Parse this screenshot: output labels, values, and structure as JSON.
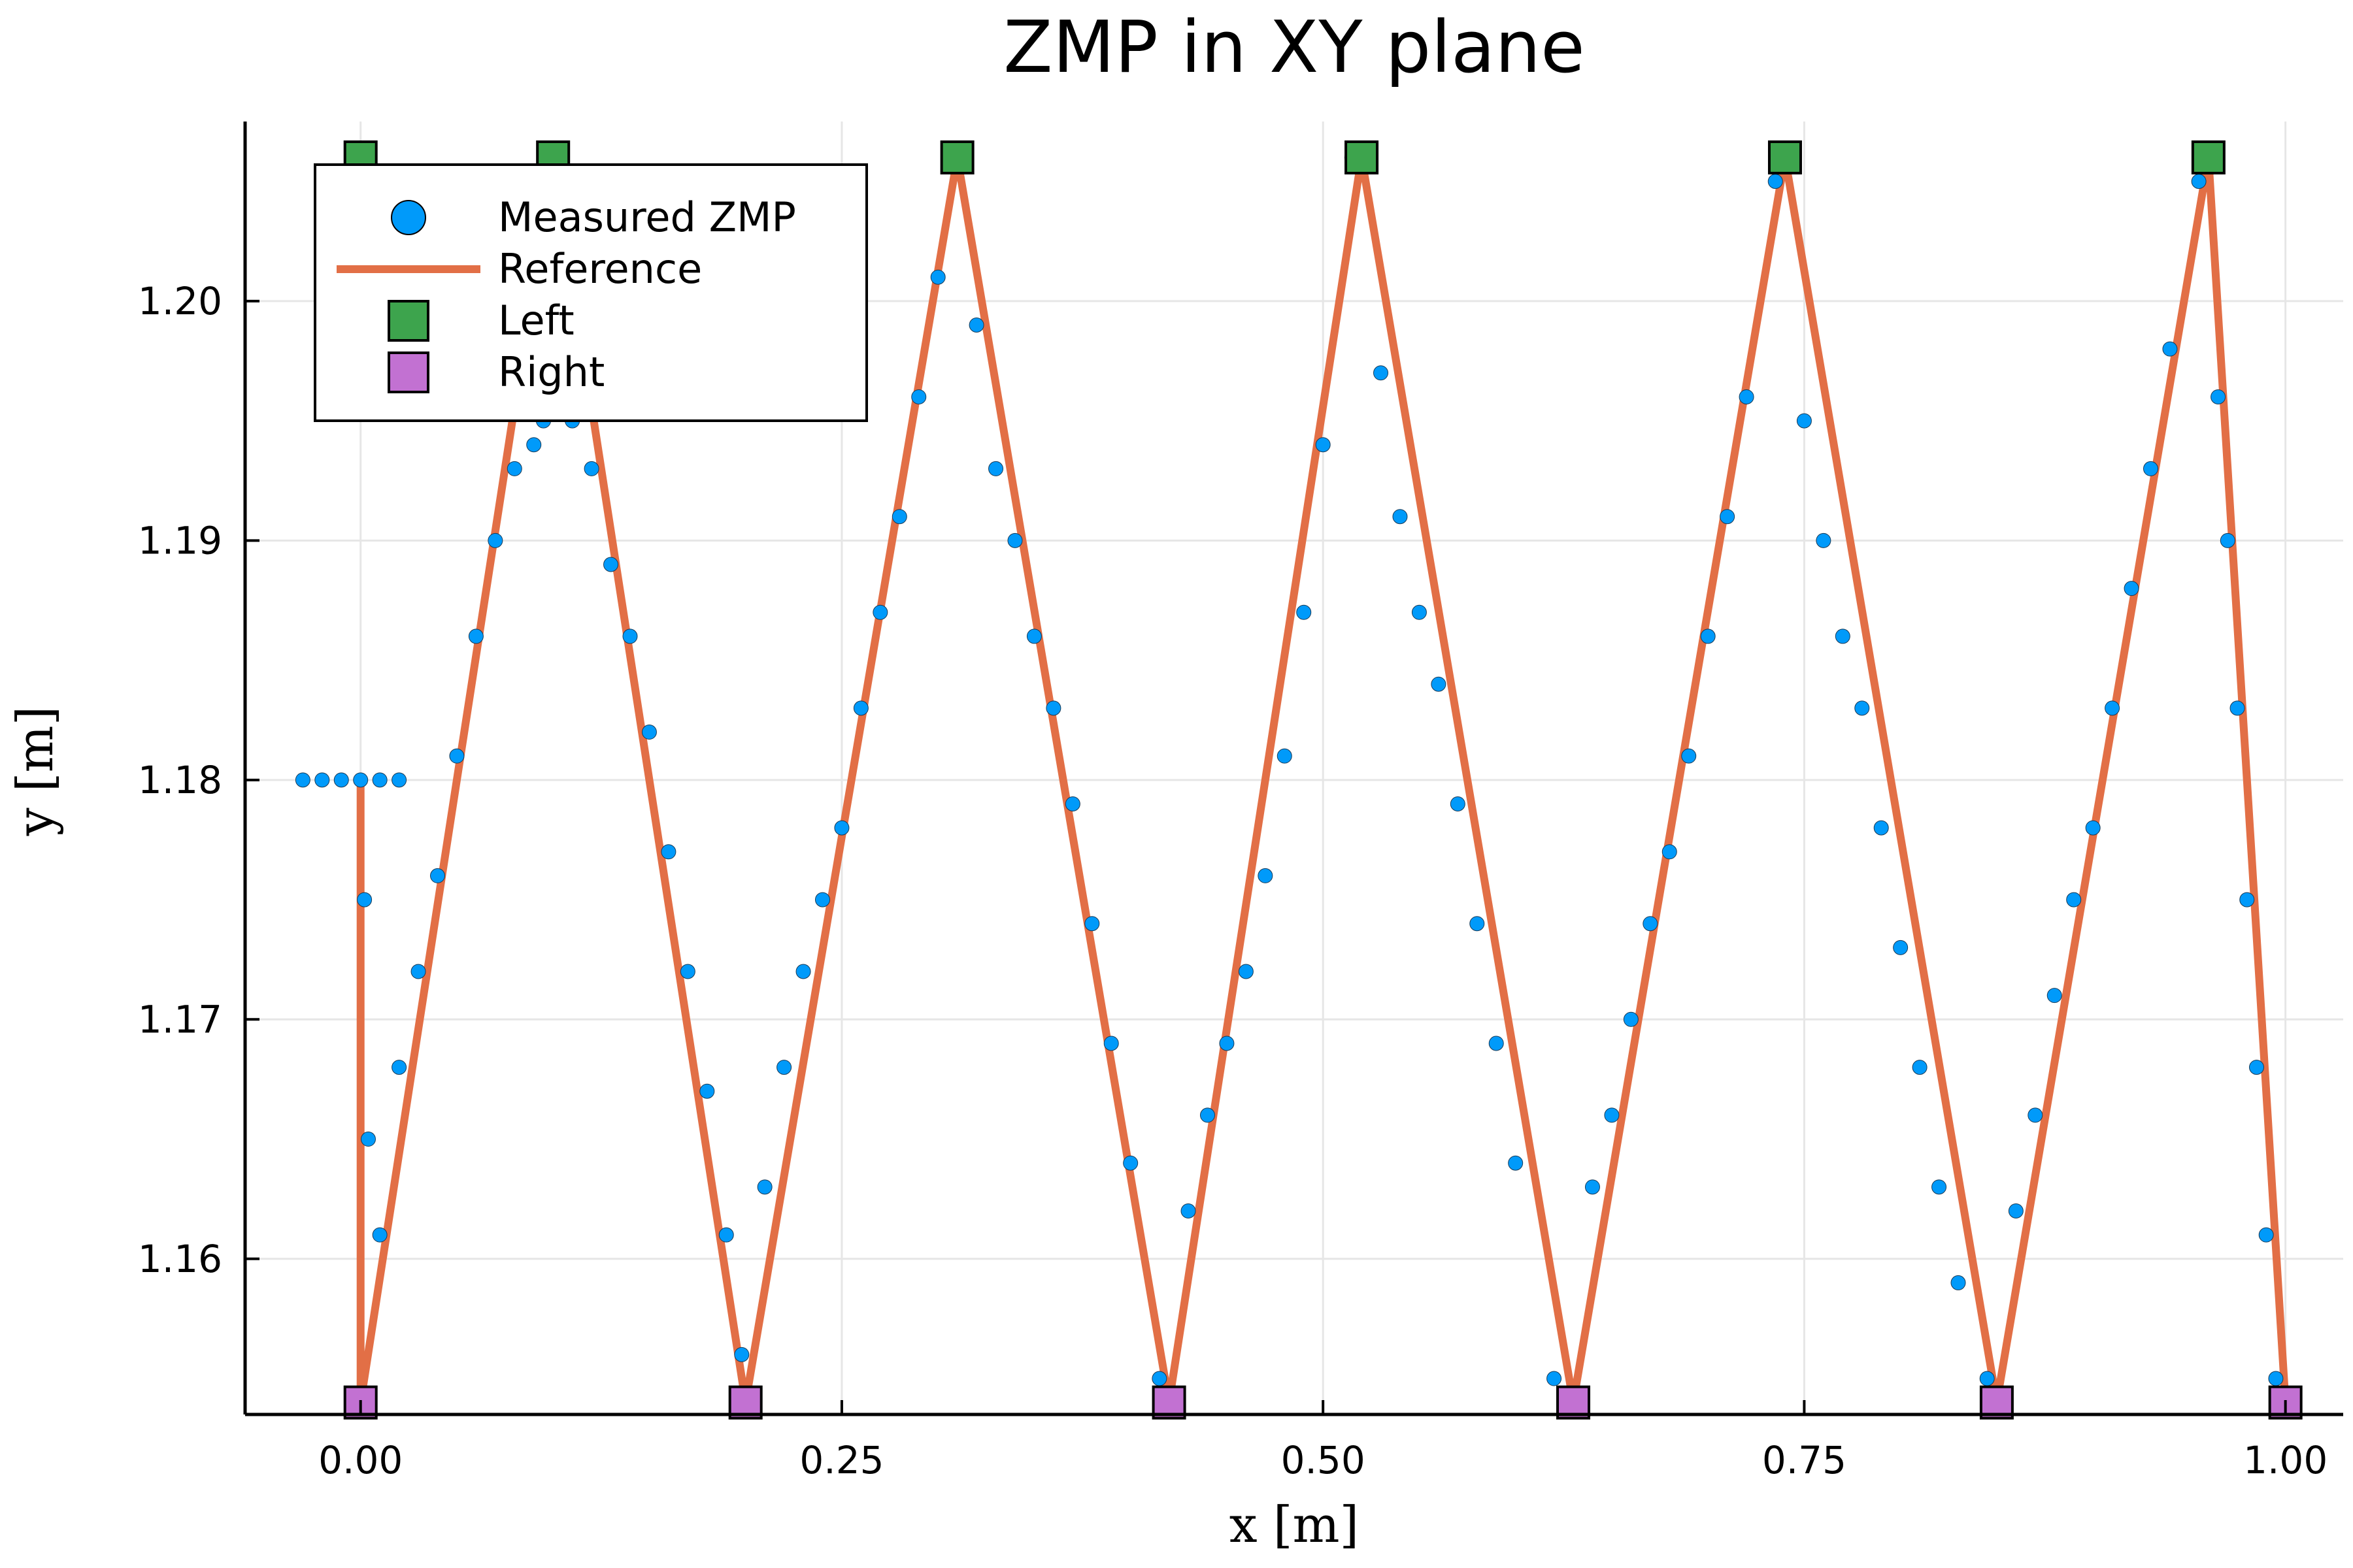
{
  "chart_data": {
    "type": "scatter",
    "title": "ZMP in XY plane",
    "xlabel": "x [m]",
    "ylabel": "y [m]",
    "xlim": [
      -0.06,
      1.03
    ],
    "ylim": [
      1.1535,
      1.2075
    ],
    "xticks": [
      0.0,
      0.25,
      0.5,
      0.75,
      1.0
    ],
    "xtick_labels": [
      "0.00",
      "0.25",
      "0.50",
      "0.75",
      "1.00"
    ],
    "yticks": [
      1.16,
      1.17,
      1.18,
      1.19,
      1.2
    ],
    "ytick_labels": [
      "1.16",
      "1.17",
      "1.18",
      "1.19",
      "1.20"
    ],
    "grid": true,
    "legend_position": "top-left",
    "series": [
      {
        "name": "Measured ZMP",
        "kind": "scatter",
        "color": "#009AFA",
        "x": [
          -0.03,
          -0.02,
          -0.01,
          0.0,
          0.01,
          0.02,
          0.002,
          0.004,
          0.01,
          0.02,
          0.03,
          0.04,
          0.05,
          0.06,
          0.07,
          0.08,
          0.09,
          0.095,
          0.11,
          0.12,
          0.13,
          0.14,
          0.15,
          0.16,
          0.17,
          0.18,
          0.19,
          0.198,
          0.21,
          0.22,
          0.23,
          0.24,
          0.25,
          0.26,
          0.27,
          0.28,
          0.29,
          0.3,
          0.31,
          0.32,
          0.33,
          0.34,
          0.35,
          0.36,
          0.37,
          0.38,
          0.39,
          0.4,
          0.415,
          0.43,
          0.44,
          0.45,
          0.46,
          0.47,
          0.48,
          0.49,
          0.5,
          0.515,
          0.53,
          0.54,
          0.55,
          0.56,
          0.57,
          0.58,
          0.59,
          0.6,
          0.62,
          0.64,
          0.65,
          0.66,
          0.67,
          0.68,
          0.69,
          0.7,
          0.71,
          0.72,
          0.735,
          0.75,
          0.76,
          0.77,
          0.78,
          0.79,
          0.8,
          0.81,
          0.82,
          0.83,
          0.845,
          0.86,
          0.87,
          0.88,
          0.89,
          0.9,
          0.91,
          0.92,
          0.93,
          0.94,
          0.955,
          0.965,
          0.97,
          0.975,
          0.98,
          0.985,
          0.99,
          0.995
        ],
        "y": [
          1.18,
          1.18,
          1.18,
          1.18,
          1.18,
          1.18,
          1.175,
          1.165,
          1.161,
          1.168,
          1.172,
          1.176,
          1.181,
          1.186,
          1.19,
          1.193,
          1.194,
          1.195,
          1.195,
          1.193,
          1.189,
          1.186,
          1.182,
          1.177,
          1.172,
          1.167,
          1.161,
          1.156,
          1.163,
          1.168,
          1.172,
          1.175,
          1.178,
          1.183,
          1.187,
          1.191,
          1.196,
          1.201,
          1.206,
          1.199,
          1.193,
          1.19,
          1.186,
          1.183,
          1.179,
          1.174,
          1.169,
          1.164,
          1.155,
          1.162,
          1.166,
          1.169,
          1.172,
          1.176,
          1.181,
          1.187,
          1.194,
          1.206,
          1.197,
          1.191,
          1.187,
          1.184,
          1.179,
          1.174,
          1.169,
          1.164,
          1.155,
          1.163,
          1.166,
          1.17,
          1.174,
          1.177,
          1.181,
          1.186,
          1.191,
          1.196,
          1.205,
          1.195,
          1.19,
          1.186,
          1.183,
          1.178,
          1.173,
          1.168,
          1.163,
          1.159,
          1.155,
          1.162,
          1.166,
          1.171,
          1.175,
          1.178,
          1.183,
          1.188,
          1.193,
          1.198,
          1.205,
          1.196,
          1.19,
          1.183,
          1.175,
          1.168,
          1.161,
          1.155
        ]
      },
      {
        "name": "Reference",
        "kind": "line",
        "color": "#E26F46",
        "x": [
          0.0,
          0.0,
          0.1,
          0.2,
          0.31,
          0.42,
          0.52,
          0.63,
          0.74,
          0.85,
          0.96,
          1.0
        ],
        "y": [
          1.18,
          1.154,
          1.206,
          1.154,
          1.206,
          1.154,
          1.206,
          1.154,
          1.206,
          1.154,
          1.206,
          1.154
        ]
      },
      {
        "name": "Left",
        "kind": "marker",
        "color": "#3DA44D",
        "x": [
          0.0,
          0.1,
          0.31,
          0.52,
          0.74,
          0.96
        ],
        "y": [
          1.206,
          1.206,
          1.206,
          1.206,
          1.206,
          1.206
        ]
      },
      {
        "name": "Right",
        "kind": "marker",
        "color": "#C271D2",
        "x": [
          0.0,
          0.2,
          0.42,
          0.63,
          0.85,
          1.0
        ],
        "y": [
          1.154,
          1.154,
          1.154,
          1.154,
          1.154,
          1.154
        ]
      }
    ]
  }
}
